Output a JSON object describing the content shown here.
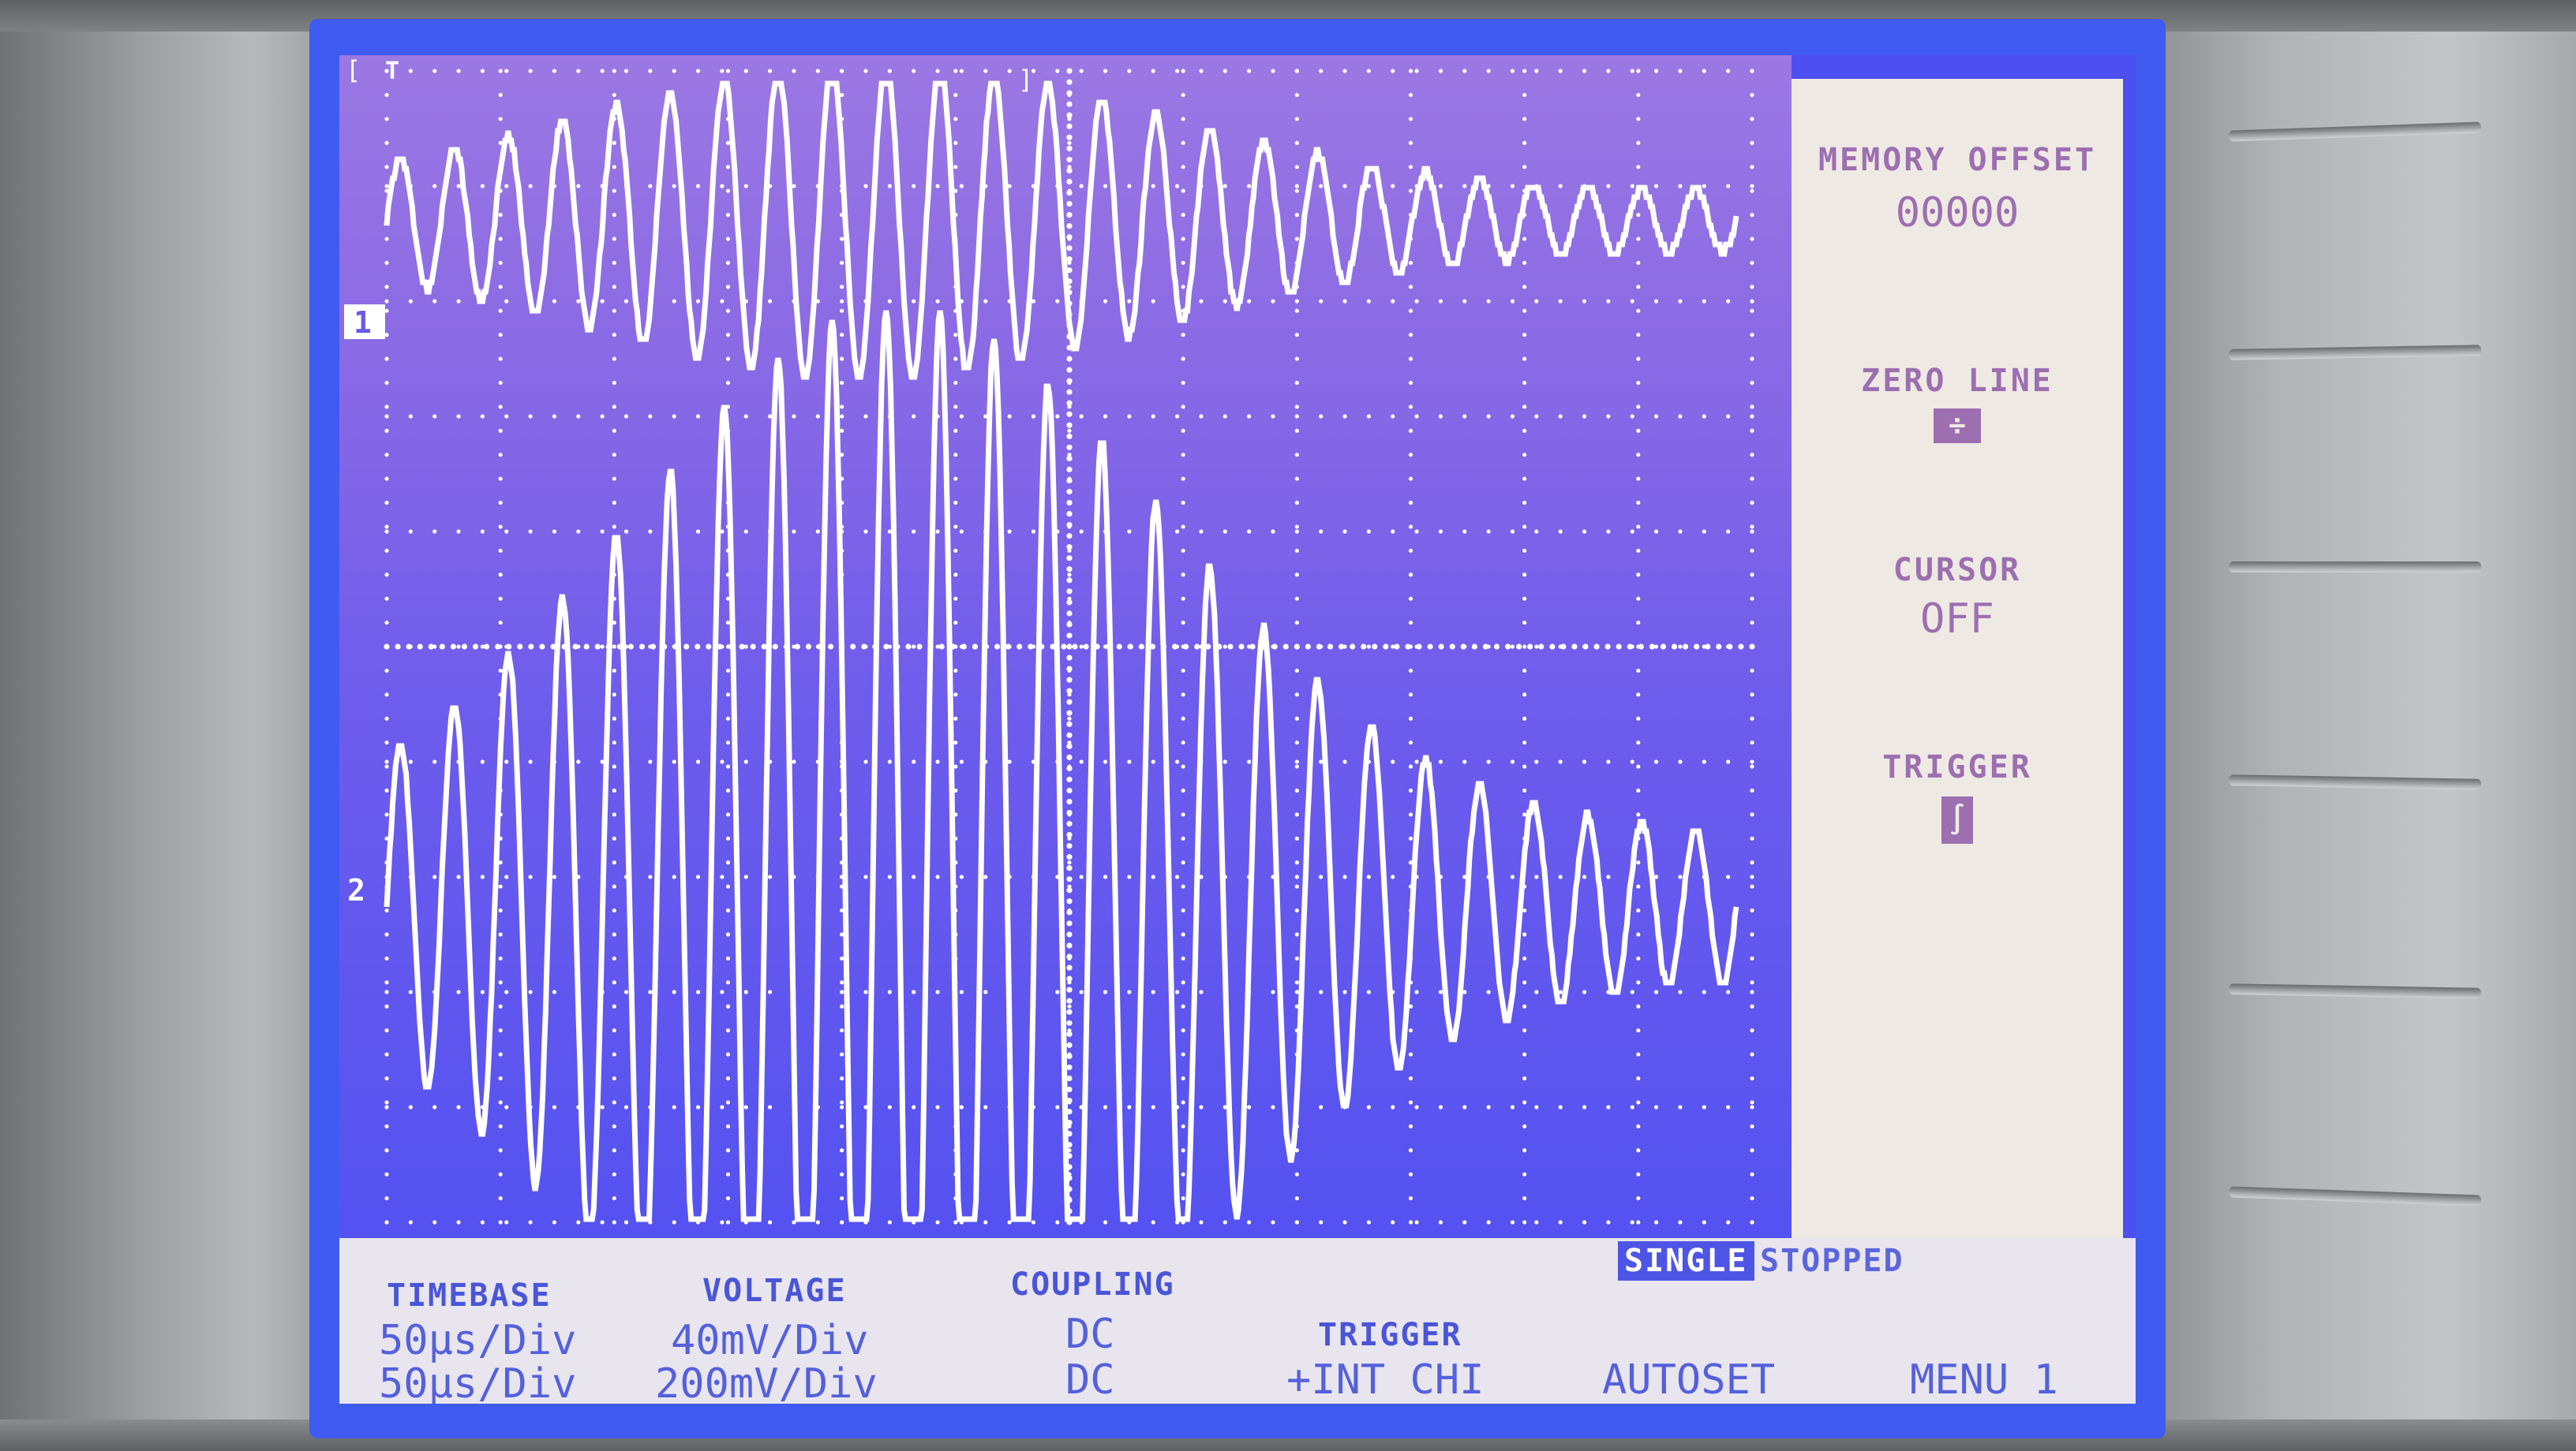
{
  "side_menu": {
    "memory_offset": {
      "label": "MEMORY OFFSET",
      "value": "00000"
    },
    "zero_line": {
      "label": "ZERO LINE",
      "icon": "zero-line-icon"
    },
    "cursor": {
      "label": "CURSOR",
      "value": "OFF"
    },
    "trigger": {
      "label": "TRIGGER",
      "icon": "trigger-slope-icon"
    }
  },
  "status": {
    "mode": "SINGLE",
    "state": "STOPPED"
  },
  "bottom_menu": {
    "timebase": {
      "label": "TIMEBASE",
      "ch1": "50μs/Div",
      "ch2": "50μs/Div"
    },
    "voltage": {
      "label": "VOLTAGE",
      "ch1": "40mV/Div",
      "ch2": "200mV/Div"
    },
    "coupling": {
      "label": "COUPLING",
      "ch1": "DC",
      "ch2": "DC"
    },
    "trigger": {
      "label": "TRIGGER",
      "value": "+INT CHI"
    },
    "autoset": {
      "label": "AUTOSET"
    },
    "menu": {
      "label": "MENU 1"
    }
  },
  "markers": {
    "ch1": "1",
    "ch2": "2",
    "trigger": "T"
  },
  "colors": {
    "screen": "#4e4ff0",
    "panel": "#efe9e4",
    "trace": "#ffffff",
    "text_side": "#9c6fb0",
    "text_bottom": "#4a55d8"
  }
}
